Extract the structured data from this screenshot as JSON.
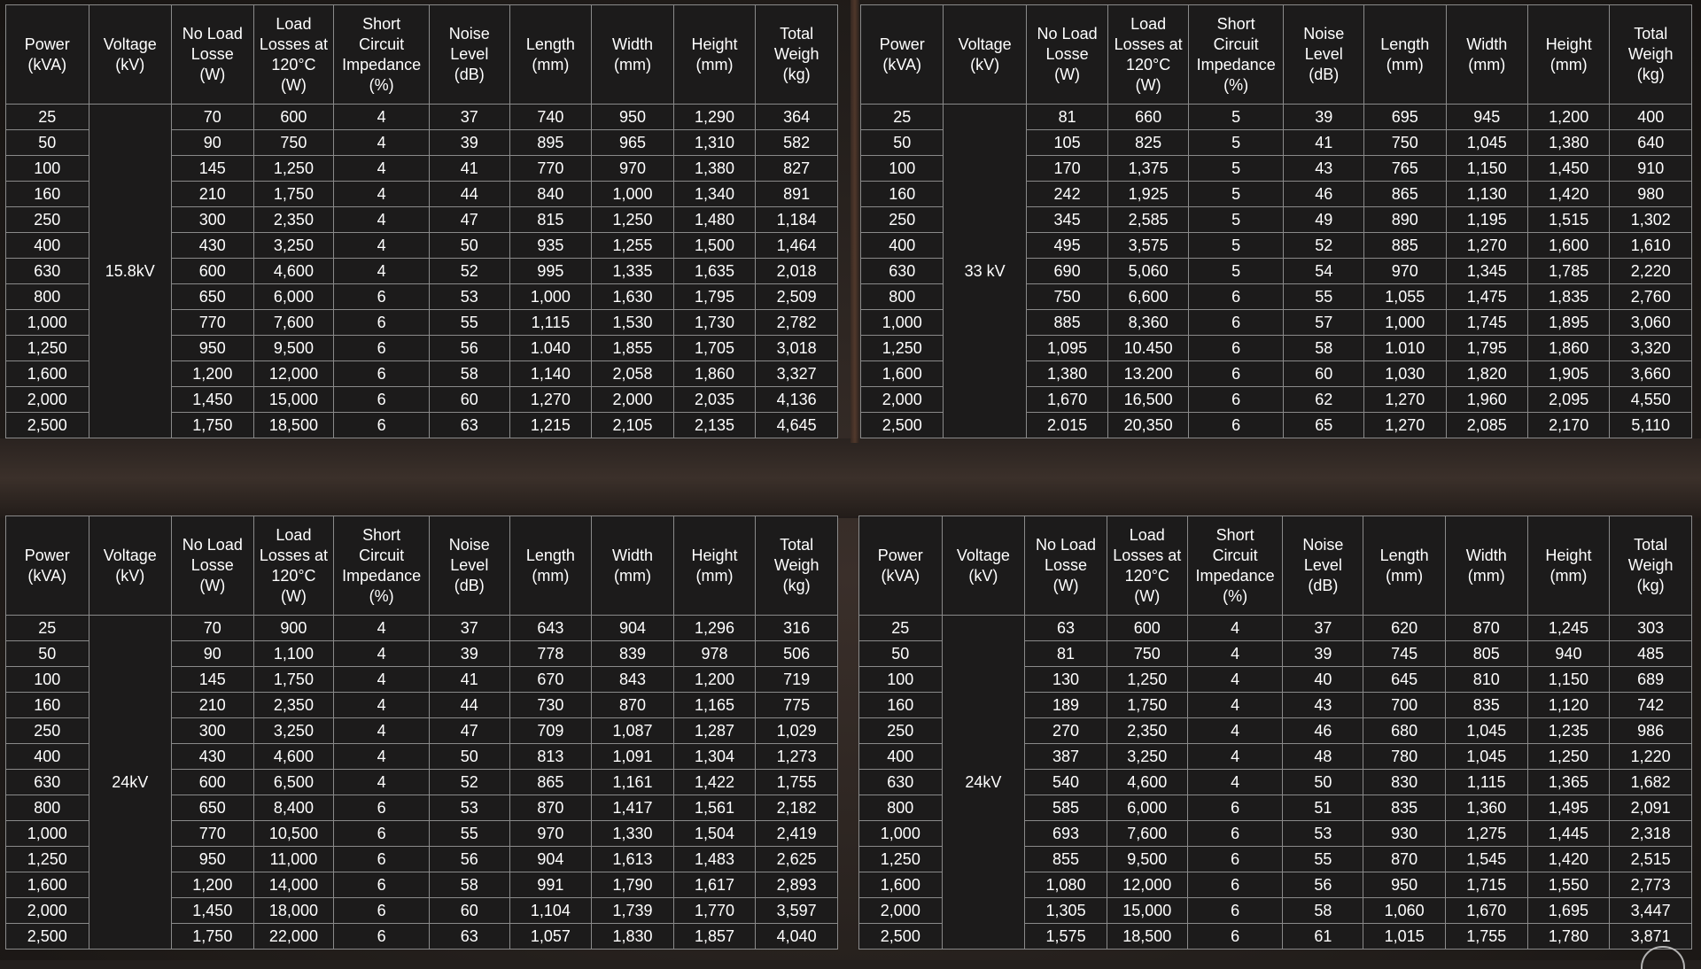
{
  "headers": [
    [
      "Power",
      "(kVA)"
    ],
    [
      "Voltage",
      "(kV)"
    ],
    [
      "No Load",
      "Losse",
      "(W)"
    ],
    [
      "Load",
      "Losses at",
      "120°C",
      "(W)"
    ],
    [
      "Short",
      "Circuit",
      "Impedance",
      "(%)"
    ],
    [
      "Noise",
      "Level",
      "(dB)"
    ],
    [
      "Length",
      "(mm)"
    ],
    [
      "Width",
      "(mm)"
    ],
    [
      "Height",
      "(mm)"
    ],
    [
      "Total",
      "Weigh",
      "(kg)"
    ]
  ],
  "tables": [
    {
      "voltage": "15.8kV",
      "rows": [
        [
          "25",
          "70",
          "600",
          "4",
          "37",
          "740",
          "950",
          "1,290",
          "364"
        ],
        [
          "50",
          "90",
          "750",
          "4",
          "39",
          "895",
          "965",
          "1,310",
          "582"
        ],
        [
          "100",
          "145",
          "1,250",
          "4",
          "41",
          "770",
          "970",
          "1,380",
          "827"
        ],
        [
          "160",
          "210",
          "1,750",
          "4",
          "44",
          "840",
          "1,000",
          "1,340",
          "891"
        ],
        [
          "250",
          "300",
          "2,350",
          "4",
          "47",
          "815",
          "1,250",
          "1,480",
          "1,184"
        ],
        [
          "400",
          "430",
          "3,250",
          "4",
          "50",
          "935",
          "1,255",
          "1,500",
          "1,464"
        ],
        [
          "630",
          "600",
          "4,600",
          "4",
          "52",
          "995",
          "1,335",
          "1,635",
          "2,018"
        ],
        [
          "800",
          "650",
          "6,000",
          "6",
          "53",
          "1,000",
          "1,630",
          "1,795",
          "2,509"
        ],
        [
          "1,000",
          "770",
          "7,600",
          "6",
          "55",
          "1,115",
          "1,530",
          "1,730",
          "2,782"
        ],
        [
          "1,250",
          "950",
          "9,500",
          "6",
          "56",
          "1.040",
          "1,855",
          "1,705",
          "3,018"
        ],
        [
          "1,600",
          "1,200",
          "12,000",
          "6",
          "58",
          "1,140",
          "2,058",
          "1,860",
          "3,327"
        ],
        [
          "2,000",
          "1,450",
          "15,000",
          "6",
          "60",
          "1,270",
          "2,000",
          "2,035",
          "4,136"
        ],
        [
          "2,500",
          "1,750",
          "18,500",
          "6",
          "63",
          "1,215",
          "2,105",
          "2,135",
          "4,645"
        ]
      ]
    },
    {
      "voltage": "33 kV",
      "rows": [
        [
          "25",
          "81",
          "660",
          "5",
          "39",
          "695",
          "945",
          "1,200",
          "400"
        ],
        [
          "50",
          "105",
          "825",
          "5",
          "41",
          "750",
          "1,045",
          "1,380",
          "640"
        ],
        [
          "100",
          "170",
          "1,375",
          "5",
          "43",
          "765",
          "1,150",
          "1,450",
          "910"
        ],
        [
          "160",
          "242",
          "1,925",
          "5",
          "46",
          "865",
          "1,130",
          "1,420",
          "980"
        ],
        [
          "250",
          "345",
          "2,585",
          "5",
          "49",
          "890",
          "1,195",
          "1,515",
          "1,302"
        ],
        [
          "400",
          "495",
          "3,575",
          "5",
          "52",
          "885",
          "1,270",
          "1,600",
          "1,610"
        ],
        [
          "630",
          "690",
          "5,060",
          "5",
          "54",
          "970",
          "1,345",
          "1,785",
          "2,220"
        ],
        [
          "800",
          "750",
          "6,600",
          "6",
          "55",
          "1,055",
          "1,475",
          "1,835",
          "2,760"
        ],
        [
          "1,000",
          "885",
          "8,360",
          "6",
          "57",
          "1,000",
          "1,745",
          "1,895",
          "3,060"
        ],
        [
          "1,250",
          "1,095",
          "10.450",
          "6",
          "58",
          "1.010",
          "1,795",
          "1,860",
          "3,320"
        ],
        [
          "1,600",
          "1,380",
          "13.200",
          "6",
          "60",
          "1,030",
          "1,820",
          "1,905",
          "3,660"
        ],
        [
          "2,000",
          "1,670",
          "16,500",
          "6",
          "62",
          "1,270",
          "1,960",
          "2,095",
          "4,550"
        ],
        [
          "2,500",
          "2.015",
          "20,350",
          "6",
          "65",
          "1,270",
          "2,085",
          "2,170",
          "5,110"
        ]
      ]
    },
    {
      "voltage": "24kV",
      "rows": [
        [
          "25",
          "70",
          "900",
          "4",
          "37",
          "643",
          "904",
          "1,296",
          "316"
        ],
        [
          "50",
          "90",
          "1,100",
          "4",
          "39",
          "778",
          "839",
          "978",
          "506"
        ],
        [
          "100",
          "145",
          "1,750",
          "4",
          "41",
          "670",
          "843",
          "1,200",
          "719"
        ],
        [
          "160",
          "210",
          "2,350",
          "4",
          "44",
          "730",
          "870",
          "1,165",
          "775"
        ],
        [
          "250",
          "300",
          "3,250",
          "4",
          "47",
          "709",
          "1,087",
          "1,287",
          "1,029"
        ],
        [
          "400",
          "430",
          "4,600",
          "4",
          "50",
          "813",
          "1,091",
          "1,304",
          "1,273"
        ],
        [
          "630",
          "600",
          "6,500",
          "4",
          "52",
          "865",
          "1,161",
          "1,422",
          "1,755"
        ],
        [
          "800",
          "650",
          "8,400",
          "6",
          "53",
          "870",
          "1,417",
          "1,561",
          "2,182"
        ],
        [
          "1,000",
          "770",
          "10,500",
          "6",
          "55",
          "970",
          "1,330",
          "1,504",
          "2,419"
        ],
        [
          "1,250",
          "950",
          "11,000",
          "6",
          "56",
          "904",
          "1,613",
          "1,483",
          "2,625"
        ],
        [
          "1,600",
          "1,200",
          "14,000",
          "6",
          "58",
          "991",
          "1,790",
          "1,617",
          "2,893"
        ],
        [
          "2,000",
          "1,450",
          "18,000",
          "6",
          "60",
          "1,104",
          "1,739",
          "1,770",
          "3,597"
        ],
        [
          "2,500",
          "1,750",
          "22,000",
          "6",
          "63",
          "1,057",
          "1,830",
          "1,857",
          "4,040"
        ]
      ]
    },
    {
      "voltage": "24kV",
      "rows": [
        [
          "25",
          "63",
          "600",
          "4",
          "37",
          "620",
          "870",
          "1,245",
          "303"
        ],
        [
          "50",
          "81",
          "750",
          "4",
          "39",
          "745",
          "805",
          "940",
          "485"
        ],
        [
          "100",
          "130",
          "1,250",
          "4",
          "40",
          "645",
          "810",
          "1,150",
          "689"
        ],
        [
          "160",
          "189",
          "1,750",
          "4",
          "43",
          "700",
          "835",
          "1,120",
          "742"
        ],
        [
          "250",
          "270",
          "2,350",
          "4",
          "46",
          "680",
          "1,045",
          "1,235",
          "986"
        ],
        [
          "400",
          "387",
          "3,250",
          "4",
          "48",
          "780",
          "1,045",
          "1,250",
          "1,220"
        ],
        [
          "630",
          "540",
          "4,600",
          "4",
          "50",
          "830",
          "1,115",
          "1,365",
          "1,682"
        ],
        [
          "800",
          "585",
          "6,000",
          "6",
          "51",
          "835",
          "1,360",
          "1,495",
          "2,091"
        ],
        [
          "1,000",
          "693",
          "7,600",
          "6",
          "53",
          "930",
          "1,275",
          "1,445",
          "2,318"
        ],
        [
          "1,250",
          "855",
          "9,500",
          "6",
          "55",
          "870",
          "1,545",
          "1,420",
          "2,515"
        ],
        [
          "1,600",
          "1,080",
          "12,000",
          "6",
          "56",
          "950",
          "1,715",
          "1,550",
          "2,773"
        ],
        [
          "2,000",
          "1,305",
          "15,000",
          "6",
          "58",
          "1,060",
          "1,670",
          "1,695",
          "3,447"
        ],
        [
          "2,500",
          "1,575",
          "18,500",
          "6",
          "61",
          "1,015",
          "1,755",
          "1,780",
          "3,871"
        ]
      ]
    }
  ]
}
